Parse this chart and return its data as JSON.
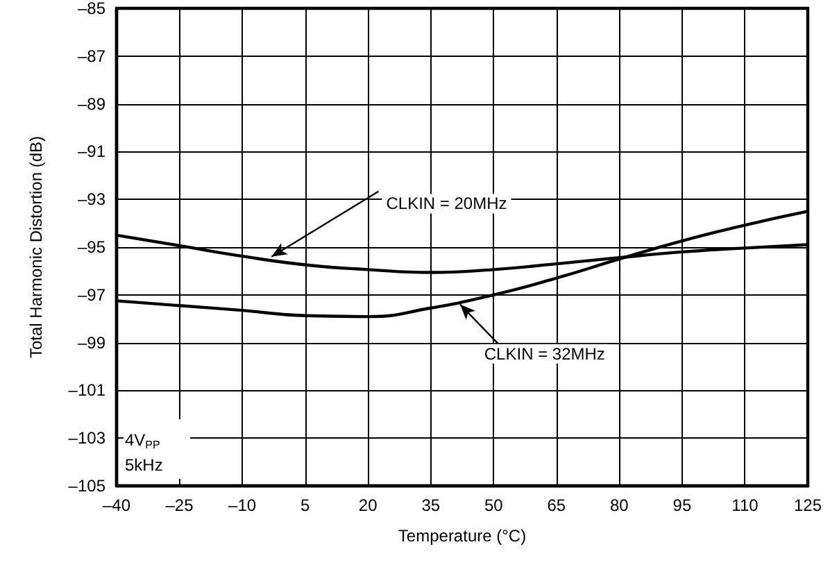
{
  "chart_data": {
    "type": "line",
    "xlabel": "Temperature (°C)",
    "ylabel": "Total Harmonic Distortion (dB)",
    "x": [
      -40,
      -25,
      -10,
      5,
      20,
      35,
      50,
      65,
      80,
      95,
      110,
      125
    ],
    "series": [
      {
        "color": "#000000",
        "values": [
          -94.5,
          -94.94,
          -95.38,
          -95.74,
          -95.94,
          -96.06,
          -95.94,
          -95.7,
          -95.44,
          -95.2,
          -95.04,
          -94.9
        ]
      },
      {
        "color": "#000000",
        "values": [
          -97.25,
          -97.45,
          -97.65,
          -97.87,
          -97.91,
          -97.55,
          -97.0,
          -96.3,
          -95.5,
          -94.74,
          -94.08,
          -93.5
        ]
      }
    ],
    "xlim": [
      -40,
      125
    ],
    "xticks": [
      {
        "value": -40,
        "label": "–40"
      },
      {
        "value": -25,
        "label": "–25"
      },
      {
        "value": -10,
        "label": "–10"
      },
      5,
      20,
      35,
      50,
      65,
      80,
      95,
      110,
      125
    ],
    "ylim": [
      -105,
      -85
    ],
    "yticks": [
      {
        "value": -105,
        "label": "–105"
      },
      {
        "value": -103,
        "label": "–103"
      },
      {
        "value": -101,
        "label": "–101"
      },
      {
        "value": -99,
        "label": "–99"
      },
      {
        "value": -97,
        "label": "–97"
      },
      {
        "value": -95,
        "label": "–95"
      },
      {
        "value": -93,
        "label": "–93"
      },
      {
        "value": -91,
        "label": "–91"
      },
      {
        "value": -89,
        "label": "–89"
      },
      {
        "value": -87,
        "label": "–87"
      },
      {
        "value": -85,
        "label": "–85"
      }
    ],
    "grid": true,
    "marker": "none",
    "line_style": "solid",
    "annotations": [
      {
        "text": "CLKIN = 20MHz",
        "x": -3,
        "y": -95.4
      },
      {
        "text": "CLKIN = 32MHz",
        "x": 42,
        "y": -97.4
      },
      "4V$_{PP}$",
      "5kHz"
    ]
  }
}
